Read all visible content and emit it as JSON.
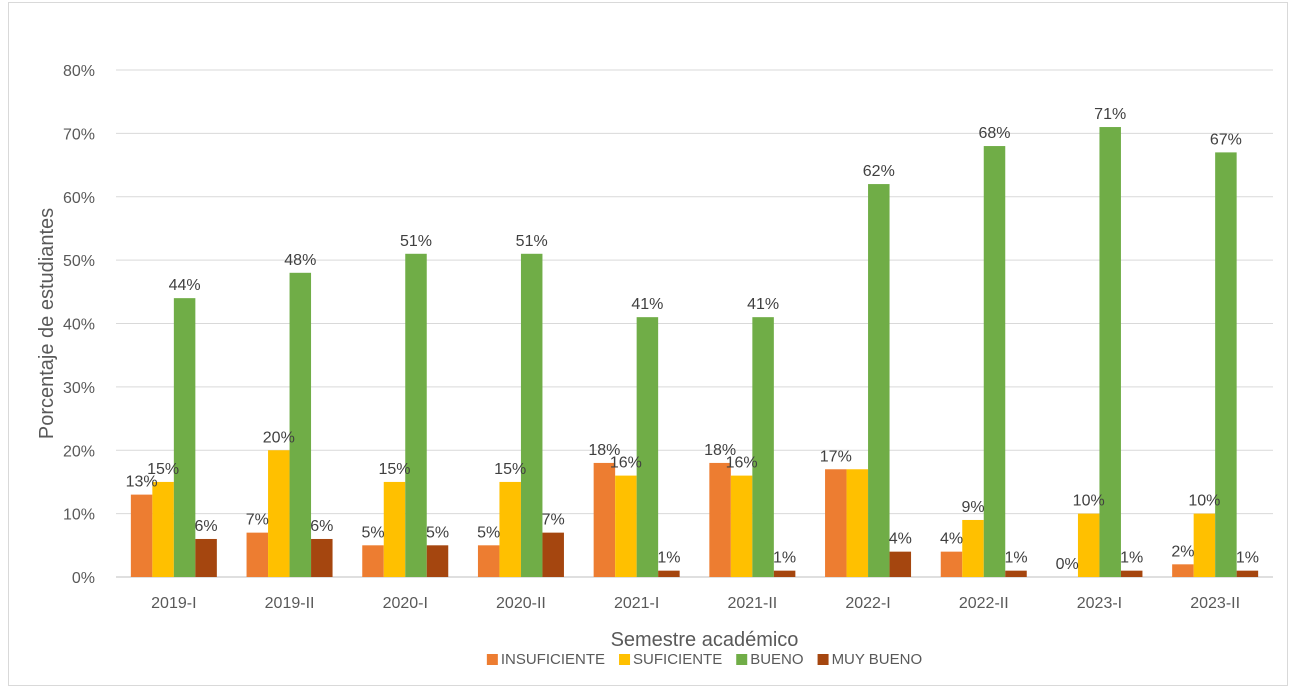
{
  "chart_data": {
    "type": "bar",
    "title": "",
    "xlabel": "Semestre académico",
    "ylabel": "Porcentaje de estudiantes",
    "ylim": [
      0,
      80
    ],
    "yticks": [
      "0%",
      "10%",
      "20%",
      "30%",
      "40%",
      "50%",
      "60%",
      "70%",
      "80%"
    ],
    "grid": true,
    "legend_position": "bottom",
    "categories": [
      "2019-I",
      "2019-II",
      "2020-I",
      "2020-II",
      "2021-I",
      "2021-II",
      "2022-I",
      "2022-II",
      "2023-I",
      "2023-II"
    ],
    "series": [
      {
        "name": "INSUFICIENTE",
        "color": "#ED7D31",
        "values": [
          13,
          7,
          5,
          5,
          18,
          18,
          17,
          4,
          0,
          2
        ],
        "labels": [
          "13%",
          "7%",
          "5%",
          "5%",
          "18%",
          "18%",
          "17%",
          "4%",
          "0%",
          "2%"
        ]
      },
      {
        "name": "SUFICIENTE",
        "color": "#FFC000",
        "values": [
          15,
          20,
          15,
          15,
          16,
          16,
          17,
          9,
          10,
          10
        ],
        "labels": [
          "15%",
          "20%",
          "15%",
          "15%",
          "16%",
          "16%",
          "",
          "9%",
          "10%",
          "10%"
        ]
      },
      {
        "name": "BUENO",
        "color": "#70AD47",
        "values": [
          44,
          48,
          51,
          51,
          41,
          41,
          62,
          68,
          71,
          67
        ],
        "labels": [
          "44%",
          "48%",
          "51%",
          "51%",
          "41%",
          "41%",
          "62%",
          "68%",
          "71%",
          "67%"
        ]
      },
      {
        "name": "MUY BUENO",
        "color": "#A5460F",
        "values": [
          6,
          6,
          5,
          7,
          1,
          1,
          4,
          1,
          1,
          1
        ],
        "labels": [
          "6%",
          "6%",
          "5%",
          "7%",
          "1%",
          "1%",
          "4%",
          "1%",
          "1%",
          "1%"
        ]
      }
    ]
  }
}
